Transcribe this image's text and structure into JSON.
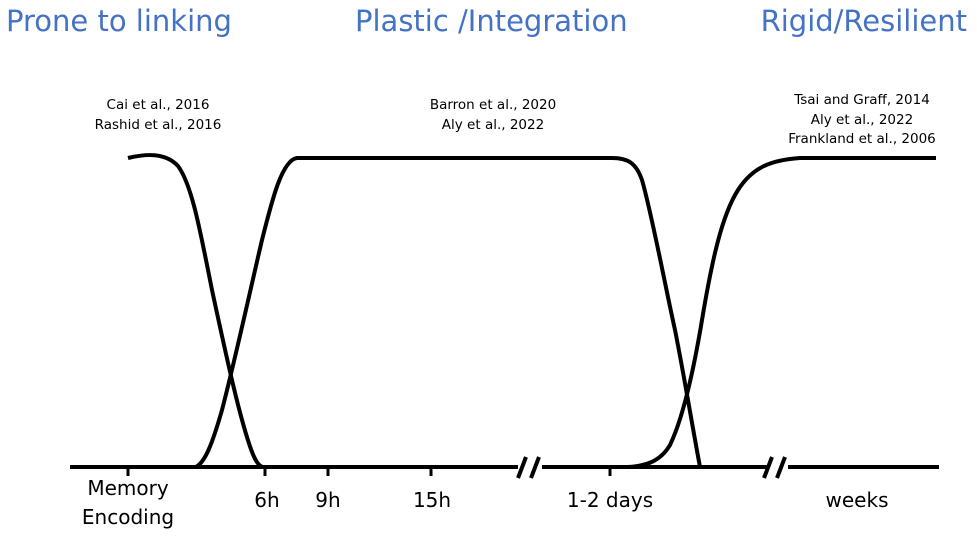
{
  "phases": [
    {
      "label": "Prone to linking"
    },
    {
      "label": "Plastic /Integration"
    },
    {
      "label": "Rigid/Resilient"
    }
  ],
  "references": [
    {
      "lines": [
        "Cai et al., 2016",
        "Rashid et al., 2016"
      ]
    },
    {
      "lines": [
        "Barron et al., 2020",
        "Aly et al., 2022"
      ]
    },
    {
      "lines": [
        "Tsai and Graff, 2014",
        "Aly et al., 2022",
        "Frankland et al., 2006"
      ]
    }
  ],
  "timeline": {
    "ticks": [
      {
        "lines": [
          "Memory",
          "Encoding"
        ]
      },
      {
        "lines": [
          "6h"
        ]
      },
      {
        "lines": [
          "9h"
        ]
      },
      {
        "lines": [
          "15h"
        ]
      },
      {
        "lines": [
          "1-2 days"
        ]
      },
      {
        "lines": [
          "weeks"
        ]
      }
    ],
    "axis_breaks": 2
  },
  "colors": {
    "phase_title": "#4472c4",
    "curve": "#000000",
    "text": "#000000"
  }
}
